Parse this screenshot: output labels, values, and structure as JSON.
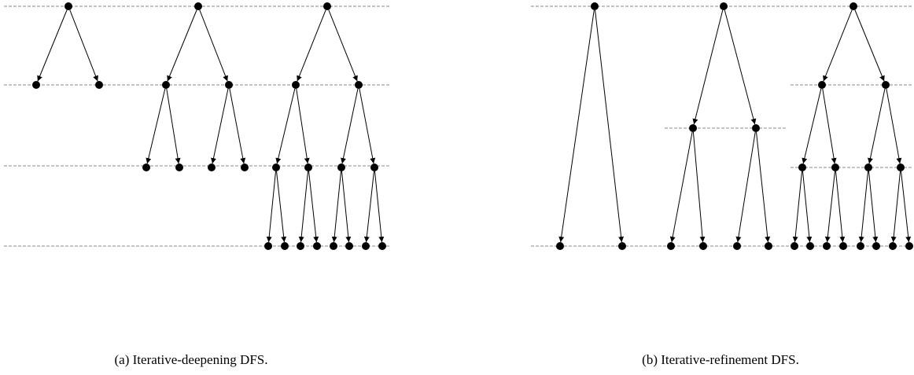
{
  "captions": {
    "a": "(a) Iterative-deepening DFS.",
    "b": "(b) Iterative-refinement DFS."
  },
  "colors": {
    "stroke": "#000000",
    "node": "#000000",
    "depth_line": "#888888"
  },
  "panels": [
    {
      "id": "a",
      "description_of_trees": "iterative deepening: trees of depth 1, 2, 3"
    },
    {
      "id": "b",
      "description_of_trees": "iterative refinement: depth-3 trees refined with 1, 2, 3 levels"
    }
  ]
}
